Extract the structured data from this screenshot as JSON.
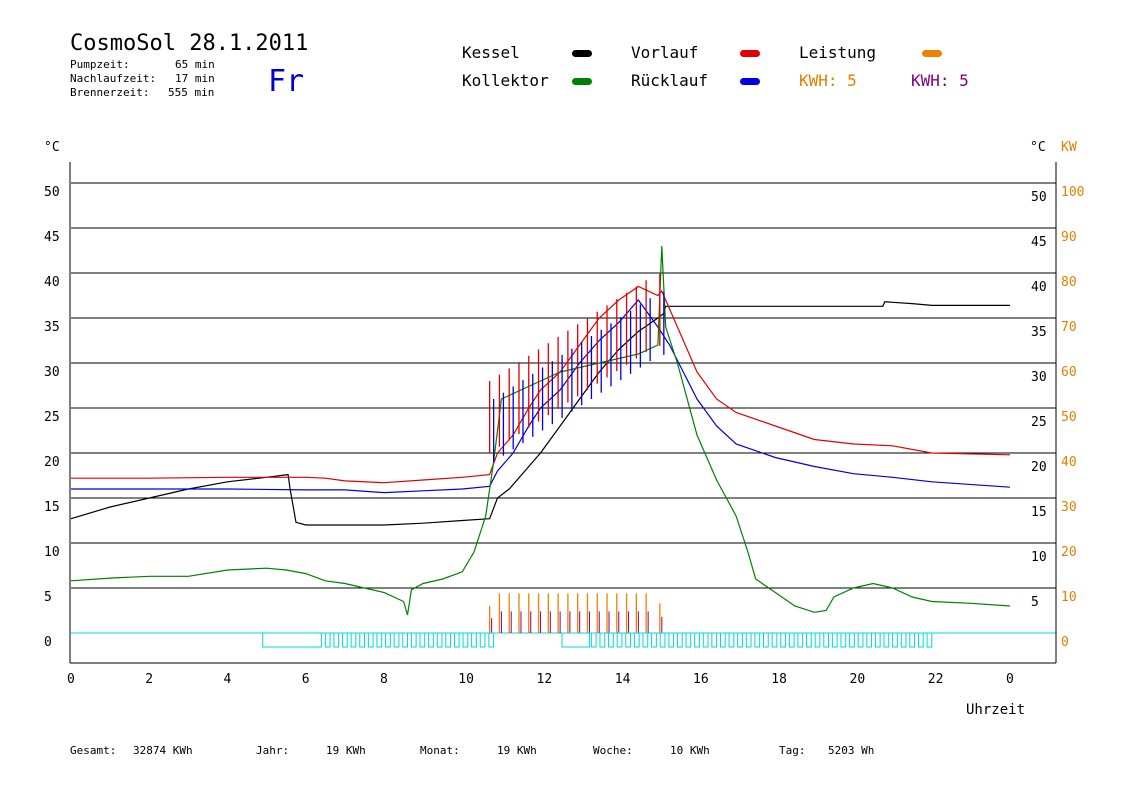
{
  "header": {
    "title": "CosmoSol 28.1.2011",
    "day": "Fr",
    "stats": [
      {
        "label": "Pumpzeit:",
        "value": "65 min"
      },
      {
        "label": "Nachlaufzeit:",
        "value": "17 min"
      },
      {
        "label": "Brennerzeit:",
        "value": "555 min"
      }
    ]
  },
  "legend": [
    {
      "label": "Kessel",
      "color": "#000000",
      "dot": true
    },
    {
      "label": "Vorlauf",
      "color": "#e00000",
      "dot": true
    },
    {
      "label": "Leistung",
      "color": "#f08000",
      "dot": true
    },
    {
      "label": "Kollektor",
      "color": "#008000",
      "dot": true
    },
    {
      "label": "Rücklauf",
      "color": "#0000e0",
      "dot": true
    },
    {
      "label": "KWH: 5",
      "color": "#e08000",
      "dot": false
    },
    {
      "label": "KWH: 5",
      "color": "#800080",
      "dot": false
    }
  ],
  "footer": [
    {
      "label": "Gesamt:",
      "value": "32874 KWh"
    },
    {
      "label": "Jahr:",
      "value": "19 KWh"
    },
    {
      "label": "Monat:",
      "value": "19 KWh"
    },
    {
      "label": "Woche:",
      "value": "10 KWh"
    },
    {
      "label": "Tag:",
      "value": "5203 Wh"
    }
  ],
  "chart_data": {
    "type": "line",
    "xlabel": "Uhrzeit",
    "ylabel_left": "°C",
    "ylabel_right_1": "°C",
    "ylabel_right_2": "KW",
    "x_ticks": [
      "0",
      "2",
      "4",
      "6",
      "8",
      "10",
      "12",
      "14",
      "16",
      "18",
      "20",
      "22",
      "0"
    ],
    "y_ticks_left": [
      "0",
      "5",
      "10",
      "15",
      "20",
      "25",
      "30",
      "35",
      "40",
      "45",
      "50"
    ],
    "y_ticks_right": [
      "5",
      "10",
      "15",
      "20",
      "25",
      "30",
      "35",
      "40",
      "45",
      "50"
    ],
    "y_ticks_kw": [
      "0",
      "10",
      "20",
      "30",
      "40",
      "50",
      "60",
      "70",
      "80",
      "90",
      "100"
    ],
    "xlim": [
      0,
      24
    ],
    "ylim": [
      0,
      50
    ],
    "grid": true,
    "series": [
      {
        "name": "Kessel",
        "color": "#000000",
        "points": [
          [
            0,
            12.7
          ],
          [
            1,
            14
          ],
          [
            2,
            15
          ],
          [
            3,
            16
          ],
          [
            4,
            16.8
          ],
          [
            5,
            17.3
          ],
          [
            5.55,
            17.6
          ],
          [
            5.6,
            16
          ],
          [
            5.75,
            12.3
          ],
          [
            6,
            12
          ],
          [
            7,
            12
          ],
          [
            8,
            12
          ],
          [
            9,
            12.2
          ],
          [
            10,
            12.5
          ],
          [
            10.7,
            12.7
          ],
          [
            10.9,
            15
          ],
          [
            11.2,
            16
          ],
          [
            11.6,
            18
          ],
          [
            12,
            20
          ],
          [
            12.5,
            23
          ],
          [
            13,
            26
          ],
          [
            13.5,
            29
          ],
          [
            14,
            31.5
          ],
          [
            14.5,
            33.5
          ],
          [
            15,
            35
          ],
          [
            15.15,
            35.5
          ],
          [
            15.2,
            36.3
          ],
          [
            16,
            36.3
          ],
          [
            18,
            36.3
          ],
          [
            20,
            36.3
          ],
          [
            20.75,
            36.3
          ],
          [
            20.8,
            36.8
          ],
          [
            21.5,
            36.6
          ],
          [
            22,
            36.4
          ],
          [
            24,
            36.4
          ]
        ]
      },
      {
        "name": "Vorlauf",
        "color": "#e00000",
        "points": [
          [
            0,
            17.2
          ],
          [
            2,
            17.2
          ],
          [
            4,
            17.3
          ],
          [
            6,
            17.3
          ],
          [
            6.5,
            17.2
          ],
          [
            7,
            16.9
          ],
          [
            8,
            16.7
          ],
          [
            9,
            17
          ],
          [
            10,
            17.3
          ],
          [
            10.7,
            17.6
          ],
          [
            10.9,
            20
          ],
          [
            11.3,
            22
          ],
          [
            11.7,
            25
          ],
          [
            12,
            27
          ],
          [
            12.5,
            29
          ],
          [
            13,
            32
          ],
          [
            13.5,
            35
          ],
          [
            14,
            37
          ],
          [
            14.5,
            38.5
          ],
          [
            15,
            37.5
          ],
          [
            15.1,
            38
          ],
          [
            15.4,
            35
          ],
          [
            16,
            29
          ],
          [
            16.5,
            26
          ],
          [
            17,
            24.5
          ],
          [
            18,
            23
          ],
          [
            19,
            21.5
          ],
          [
            20,
            21
          ],
          [
            21,
            20.8
          ],
          [
            22,
            20
          ],
          [
            24,
            19.8
          ]
        ]
      },
      {
        "name": "Rücklauf",
        "color": "#0000e0",
        "points": [
          [
            0,
            16
          ],
          [
            2,
            16
          ],
          [
            4,
            16
          ],
          [
            6,
            15.9
          ],
          [
            7,
            15.9
          ],
          [
            8,
            15.6
          ],
          [
            9,
            15.8
          ],
          [
            10,
            16
          ],
          [
            10.7,
            16.3
          ],
          [
            10.9,
            18
          ],
          [
            11.3,
            20
          ],
          [
            11.7,
            23
          ],
          [
            12,
            25
          ],
          [
            12.5,
            27
          ],
          [
            13,
            30
          ],
          [
            13.5,
            32.5
          ],
          [
            14,
            34.5
          ],
          [
            14.5,
            37
          ],
          [
            15,
            34
          ],
          [
            15.3,
            32
          ],
          [
            16,
            26
          ],
          [
            16.5,
            23
          ],
          [
            17,
            21
          ],
          [
            18,
            19.5
          ],
          [
            19,
            18.5
          ],
          [
            20,
            17.7
          ],
          [
            21,
            17.3
          ],
          [
            22,
            16.8
          ],
          [
            24,
            16.2
          ]
        ]
      },
      {
        "name": "Kollektor",
        "color": "#008000",
        "points": [
          [
            0,
            5.8
          ],
          [
            1,
            6.1
          ],
          [
            2,
            6.3
          ],
          [
            3,
            6.3
          ],
          [
            4,
            7
          ],
          [
            5,
            7.2
          ],
          [
            5.5,
            7
          ],
          [
            6,
            6.6
          ],
          [
            6.5,
            5.8
          ],
          [
            7,
            5.5
          ],
          [
            7.5,
            5
          ],
          [
            8,
            4.5
          ],
          [
            8.5,
            3.5
          ],
          [
            8.6,
            2
          ],
          [
            8.7,
            4.8
          ],
          [
            9,
            5.5
          ],
          [
            9.5,
            6
          ],
          [
            10,
            6.8
          ],
          [
            10.3,
            9
          ],
          [
            10.6,
            13
          ],
          [
            10.8,
            19
          ],
          [
            11,
            26
          ],
          [
            11.5,
            27
          ],
          [
            12,
            28
          ],
          [
            12.5,
            29
          ],
          [
            13,
            29.5
          ],
          [
            13.5,
            30
          ],
          [
            14,
            30.5
          ],
          [
            14.5,
            31
          ],
          [
            15,
            32
          ],
          [
            15.1,
            43
          ],
          [
            15.2,
            34
          ],
          [
            15.5,
            30
          ],
          [
            16,
            22
          ],
          [
            16.5,
            17
          ],
          [
            17,
            13
          ],
          [
            17.3,
            9
          ],
          [
            17.5,
            6
          ],
          [
            18,
            4.5
          ],
          [
            18.5,
            3
          ],
          [
            19,
            2.3
          ],
          [
            19.3,
            2.5
          ],
          [
            19.5,
            4
          ],
          [
            20,
            5
          ],
          [
            20.5,
            5.5
          ],
          [
            21,
            5
          ],
          [
            21.5,
            4
          ],
          [
            22,
            3.5
          ],
          [
            23,
            3.3
          ],
          [
            24,
            3
          ]
        ]
      }
    ],
    "burner_pulse_hours": [
      10.7,
      10.95,
      11.2,
      11.45,
      11.7,
      11.95,
      12.2,
      12.45,
      12.7,
      12.95,
      13.2,
      13.45,
      13.7,
      13.95,
      14.2,
      14.45,
      14.7,
      15.05
    ],
    "burner_peak_value": 28,
    "power_pulse_peaks_kw": [
      5.5,
      8,
      8,
      8,
      8,
      8,
      8,
      8,
      8,
      8,
      8,
      8,
      8,
      8,
      8,
      8,
      8,
      6
    ],
    "pump_on_hours": [
      [
        4.9,
        6.4
      ],
      [
        12.55,
        13.25
      ]
    ],
    "pump_cycle_hours": [
      [
        6.5,
        10.75
      ],
      [
        13.3,
        22.0
      ]
    ]
  }
}
